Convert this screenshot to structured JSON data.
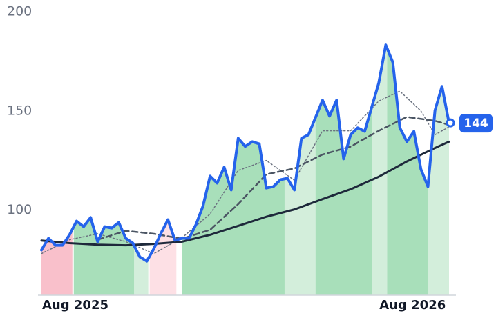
{
  "chart_data": {
    "type": "line",
    "x": [
      0,
      0.25,
      0.5,
      0.75,
      1,
      1.25,
      1.5,
      1.75,
      2,
      2.25,
      2.5,
      2.75,
      3,
      3.25,
      3.5,
      3.75,
      4,
      4.25,
      4.5,
      4.75,
      5,
      5.25,
      5.5,
      5.75,
      6,
      6.25,
      6.5,
      6.75,
      7,
      7.25,
      7.5,
      7.75,
      8,
      8.25,
      8.5,
      8.75,
      9,
      9.25,
      9.5,
      9.75,
      10,
      10.25,
      10.5,
      10.75,
      11,
      11.25,
      11.5,
      11.75,
      12,
      12.25,
      12.5,
      12.75,
      13,
      13.25,
      13.5,
      13.75,
      14,
      14.25,
      14.5
    ],
    "xlim": [
      0,
      14.5
    ],
    "xticks": [
      {
        "value": 0,
        "label": "Aug 2025"
      },
      {
        "value": 12,
        "label": "Aug 2026"
      }
    ],
    "ylim": [
      57,
      206
    ],
    "yticks": [
      100,
      150,
      200
    ],
    "series": [
      {
        "color": "#2563eb",
        "values": [
          79.8,
          85.7,
          82.2,
          82.2,
          87.5,
          94.4,
          91.6,
          96.2,
          84.0,
          91.6,
          90.9,
          93.7,
          85.7,
          83.3,
          76.3,
          74.2,
          80.5,
          88.2,
          95.1,
          84.7,
          85.7,
          85.7,
          92.7,
          102.1,
          117.1,
          113.6,
          121.6,
          110.1,
          136.2,
          132.1,
          134.5,
          133.4,
          111.1,
          111.8,
          115.3,
          116.0,
          110.1,
          136.2,
          138.0,
          146.7,
          155.4,
          147.4,
          155.4,
          125.8,
          138.0,
          141.5,
          139.7,
          151.9,
          164.1,
          183.3,
          174.6,
          141.5,
          134.5,
          139.7,
          120.6,
          111.8,
          150.2,
          162.4,
          144
        ]
      },
      {
        "color": "#1e293b",
        "x": [
          0,
          1,
          2,
          3,
          4,
          5,
          6,
          7,
          8,
          9,
          10,
          11,
          12,
          13,
          14,
          14.5
        ],
        "values": [
          84.6,
          83.3,
          82.5,
          82.2,
          82.9,
          84.0,
          87.5,
          92.0,
          96.6,
          100.3,
          105.5,
          110.5,
          116.8,
          124.5,
          131.3,
          134.5
        ]
      },
      {
        "color": "#4b5563",
        "x": [
          2,
          3,
          4,
          5,
          6,
          7,
          8,
          9,
          10,
          11,
          12,
          13,
          14,
          14.5
        ],
        "values": [
          85,
          89.5,
          88,
          85.5,
          90,
          103,
          118,
          121,
          128,
          132,
          140,
          147,
          145,
          143
        ]
      },
      {
        "color": "#6b7280",
        "x": [
          0,
          1,
          2,
          3,
          4,
          5,
          6,
          7,
          8,
          9,
          10,
          11,
          12,
          12.75,
          13.5,
          14,
          14.5
        ],
        "values": [
          78,
          85,
          88,
          84,
          78,
          86,
          98,
          120,
          125,
          115,
          140,
          140,
          155,
          160,
          150,
          138,
          142
        ]
      }
    ],
    "regimes": [
      {
        "from": 0,
        "to": 1.1,
        "color": "#f9c0cb"
      },
      {
        "from": 1.15,
        "to": 3.3,
        "color": "#a8dfba"
      },
      {
        "from": 3.3,
        "to": 3.8,
        "color": "#d3eedb"
      },
      {
        "from": 3.85,
        "to": 4.8,
        "color": "#fde0e5"
      },
      {
        "from": 5.0,
        "to": 8.65,
        "color": "#a8dfba"
      },
      {
        "from": 8.65,
        "to": 9.75,
        "color": "#d3eedb"
      },
      {
        "from": 9.75,
        "to": 11.75,
        "color": "#a8dfba"
      },
      {
        "from": 11.75,
        "to": 12.3,
        "color": "#d3eedb"
      },
      {
        "from": 12.3,
        "to": 13.75,
        "color": "#a8dfba"
      },
      {
        "from": 13.75,
        "to": 14.5,
        "color": "#d3eedb"
      }
    ]
  }
}
